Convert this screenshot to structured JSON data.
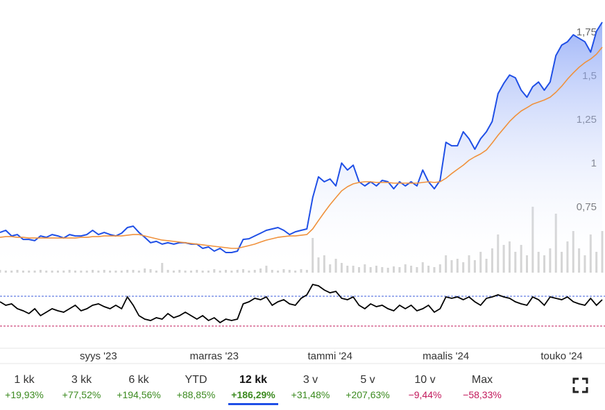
{
  "chart_data": {
    "type": "line",
    "categories": [
      null,
      null,
      null,
      null,
      null,
      null,
      null,
      null,
      null,
      null,
      null,
      null,
      null,
      null,
      null,
      null,
      null,
      "syys '23",
      null,
      null,
      null,
      null,
      null,
      null,
      null,
      null,
      null,
      null,
      null,
      null,
      null,
      null,
      null,
      null,
      null,
      null,
      null,
      "marras '23",
      null,
      null,
      null,
      null,
      null,
      null,
      null,
      null,
      null,
      null,
      null,
      null,
      null,
      null,
      null,
      null,
      null,
      null,
      null,
      "tammi '24",
      null,
      null,
      null,
      null,
      null,
      null,
      null,
      null,
      null,
      null,
      null,
      null,
      null,
      null,
      null,
      null,
      null,
      null,
      null,
      "maalis '24",
      null,
      null,
      null,
      null,
      null,
      null,
      null,
      null,
      null,
      null,
      null,
      null,
      null,
      null,
      null,
      null,
      null,
      null,
      null,
      "touko '24",
      null,
      null,
      null,
      null,
      null,
      null,
      null
    ],
    "series": [
      {
        "color": "#1f4fe6",
        "values": [
          0.603,
          0.615,
          0.583,
          0.591,
          0.563,
          0.563,
          0.556,
          0.583,
          0.575,
          0.591,
          0.583,
          0.571,
          0.591,
          0.583,
          0.583,
          0.591,
          0.615,
          0.591,
          0.603,
          0.591,
          0.583,
          0.599,
          0.631,
          0.639,
          0.603,
          0.575,
          0.544,
          0.552,
          0.536,
          0.544,
          0.536,
          0.544,
          0.544,
          0.536,
          0.536,
          0.512,
          0.52,
          0.496,
          0.512,
          0.488,
          0.488,
          0.496,
          0.563,
          0.567,
          0.583,
          0.599,
          0.615,
          0.623,
          0.631,
          0.615,
          0.591,
          0.607,
          0.615,
          0.623,
          0.802,
          0.921,
          0.893,
          0.909,
          0.869,
          1.0,
          0.96,
          0.988,
          0.893,
          0.869,
          0.893,
          0.869,
          0.901,
          0.893,
          0.853,
          0.893,
          0.869,
          0.893,
          0.869,
          0.96,
          0.893,
          0.853,
          0.901,
          1.119,
          1.099,
          1.099,
          1.179,
          1.139,
          1.079,
          1.139,
          1.179,
          1.238,
          1.397,
          1.456,
          1.504,
          1.488,
          1.417,
          1.377,
          1.437,
          1.464,
          1.417,
          1.464,
          1.615,
          1.675,
          1.694,
          1.734,
          1.714,
          1.694,
          1.635,
          1.754,
          1.806
        ]
      },
      {
        "color": "#f0913c",
        "values": [
          0.575,
          0.579,
          0.579,
          0.575,
          0.575,
          0.571,
          0.571,
          0.571,
          0.571,
          0.571,
          0.571,
          0.571,
          0.571,
          0.571,
          0.575,
          0.575,
          0.579,
          0.579,
          0.583,
          0.583,
          0.583,
          0.583,
          0.587,
          0.591,
          0.591,
          0.583,
          0.575,
          0.567,
          0.559,
          0.556,
          0.552,
          0.548,
          0.544,
          0.54,
          0.536,
          0.532,
          0.528,
          0.524,
          0.52,
          0.516,
          0.512,
          0.512,
          0.52,
          0.528,
          0.536,
          0.548,
          0.559,
          0.567,
          0.575,
          0.579,
          0.583,
          0.583,
          0.587,
          0.591,
          0.623,
          0.671,
          0.718,
          0.762,
          0.802,
          0.841,
          0.865,
          0.881,
          0.889,
          0.893,
          0.893,
          0.889,
          0.889,
          0.889,
          0.885,
          0.885,
          0.885,
          0.885,
          0.885,
          0.889,
          0.893,
          0.889,
          0.893,
          0.913,
          0.94,
          0.964,
          0.988,
          1.016,
          1.036,
          1.052,
          1.075,
          1.115,
          1.159,
          1.198,
          1.238,
          1.27,
          1.298,
          1.317,
          1.337,
          1.349,
          1.361,
          1.377,
          1.405,
          1.44,
          1.48,
          1.516,
          1.548,
          1.575,
          1.595,
          1.623,
          1.663
        ]
      }
    ],
    "ylim": [
      0.373,
      1.933
    ],
    "yticks": [
      {
        "value": 1.75,
        "label": "1,75"
      },
      {
        "value": 1.5,
        "label": "1,5"
      },
      {
        "value": 1.25,
        "label": "1,25"
      },
      1,
      {
        "value": 0.75,
        "label": "0,75"
      }
    ],
    "volume": {
      "color": "#d4d4d4",
      "lim": [
        0,
        100
      ],
      "values": [
        4,
        3,
        3,
        4,
        3,
        3,
        3,
        4,
        3,
        3,
        3,
        3,
        4,
        3,
        3,
        3,
        4,
        3,
        4,
        3,
        3,
        3,
        4,
        4,
        3,
        6,
        5,
        3,
        14,
        4,
        3,
        4,
        3,
        3,
        4,
        3,
        3,
        5,
        3,
        4,
        3,
        4,
        5,
        3,
        4,
        6,
        10,
        4,
        3,
        5,
        4,
        3,
        5,
        4,
        50,
        22,
        25,
        12,
        20,
        14,
        10,
        10,
        8,
        12,
        8,
        10,
        8,
        7,
        9,
        8,
        12,
        10,
        8,
        15,
        10,
        8,
        12,
        25,
        18,
        20,
        15,
        25,
        18,
        30,
        20,
        35,
        55,
        40,
        45,
        30,
        40,
        25,
        95,
        30,
        25,
        35,
        85,
        30,
        45,
        60,
        35,
        25,
        55,
        30,
        60
      ]
    },
    "oscillator": {
      "color": "#000000",
      "lim": [
        0,
        90
      ],
      "levels": [
        {
          "value": 53,
          "color": "#3b5bdb"
        },
        {
          "value": 10,
          "color": "#c2185b"
        }
      ],
      "values": [
        45,
        40,
        42,
        35,
        32,
        28,
        35,
        25,
        30,
        35,
        32,
        30,
        35,
        40,
        32,
        35,
        40,
        42,
        38,
        35,
        40,
        35,
        52,
        40,
        25,
        20,
        18,
        22,
        20,
        28,
        22,
        25,
        30,
        25,
        20,
        25,
        18,
        22,
        15,
        20,
        18,
        20,
        42,
        45,
        50,
        48,
        52,
        40,
        45,
        48,
        42,
        40,
        50,
        55,
        70,
        68,
        62,
        58,
        60,
        50,
        48,
        52,
        40,
        35,
        42,
        38,
        40,
        35,
        32,
        40,
        35,
        40,
        32,
        35,
        40,
        30,
        35,
        52,
        50,
        52,
        48,
        52,
        45,
        40,
        50,
        52,
        55,
        52,
        50,
        45,
        42,
        40,
        52,
        48,
        40,
        52,
        50,
        48,
        52,
        45,
        42,
        40,
        50,
        40,
        48
      ]
    }
  },
  "periods": [
    {
      "label": "1 kk",
      "change": "+19,93%"
    },
    {
      "label": "3 kk",
      "change": "+77,52%"
    },
    {
      "label": "6 kk",
      "change": "+194,56%"
    },
    {
      "label": "YTD",
      "change": "+88,85%"
    },
    {
      "label": "12 kk",
      "change": "+186,29%",
      "selected": true
    },
    {
      "label": "3 v",
      "change": "+31,48%"
    },
    {
      "label": "5 v",
      "change": "+207,63%"
    },
    {
      "label": "10 v",
      "change": "−9,44%"
    },
    {
      "label": "Max",
      "change": "−58,33%"
    }
  ]
}
